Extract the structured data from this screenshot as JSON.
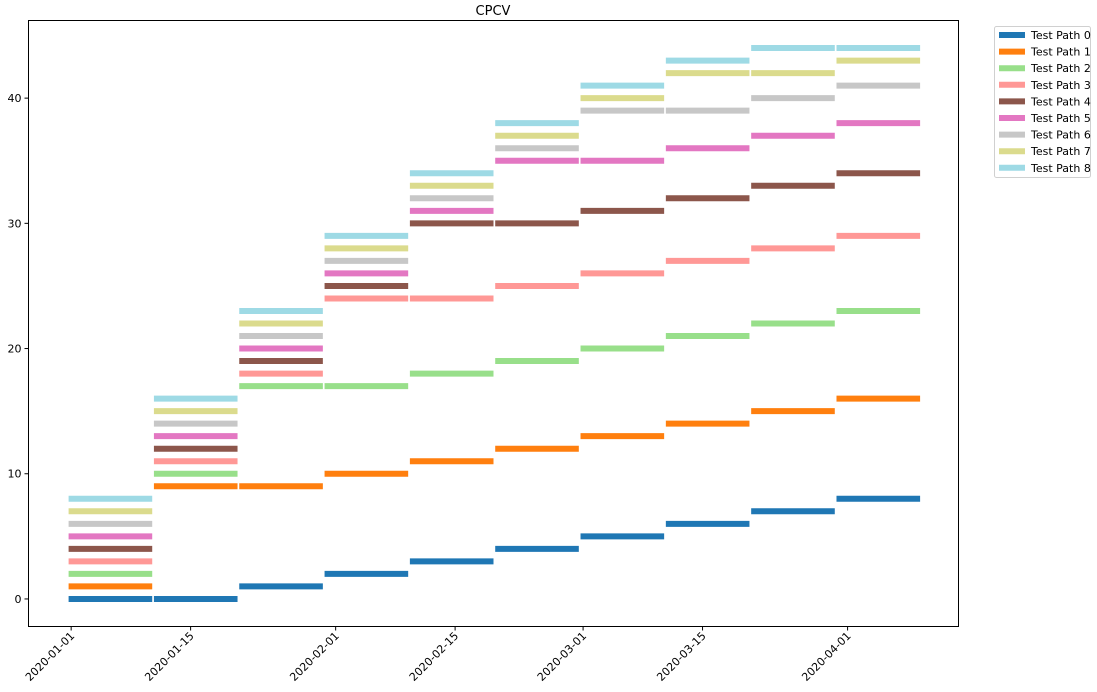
{
  "chart_data": {
    "type": "line",
    "title": "CPCV",
    "xlabel": "",
    "ylabel": "",
    "x_axis_type": "date",
    "xlim": [
      "2019-12-27",
      "2020-04-14"
    ],
    "ylim": [
      -2.2,
      46.2
    ],
    "x_ticks": [
      "2020-01-01",
      "2020-01-15",
      "2020-02-01",
      "2020-02-15",
      "2020-03-01",
      "2020-03-15",
      "2020-04-01"
    ],
    "y_ticks": [
      0,
      10,
      20,
      30,
      40
    ],
    "grid": false,
    "legend_placement": "outside-top-right",
    "groups": [
      {
        "start": "2020-01-01",
        "end": "2020-01-10"
      },
      {
        "start": "2020-01-11",
        "end": "2020-01-20"
      },
      {
        "start": "2020-01-21",
        "end": "2020-01-30"
      },
      {
        "start": "2020-01-31",
        "end": "2020-02-09"
      },
      {
        "start": "2020-02-10",
        "end": "2020-02-19"
      },
      {
        "start": "2020-02-20",
        "end": "2020-02-29"
      },
      {
        "start": "2020-03-01",
        "end": "2020-03-10"
      },
      {
        "start": "2020-03-11",
        "end": "2020-03-20"
      },
      {
        "start": "2020-03-21",
        "end": "2020-03-30"
      },
      {
        "start": "2020-03-31",
        "end": "2020-04-09"
      }
    ],
    "series": [
      {
        "name": "Test Path 0",
        "color": "#1f77b4",
        "values": [
          0,
          0,
          1,
          2,
          3,
          4,
          5,
          6,
          7,
          8
        ]
      },
      {
        "name": "Test Path 1",
        "color": "#ff7f0e",
        "values": [
          1,
          9,
          9,
          10,
          11,
          12,
          13,
          14,
          15,
          16
        ]
      },
      {
        "name": "Test Path 2",
        "color": "#98df8a",
        "values": [
          2,
          10,
          17,
          17,
          18,
          19,
          20,
          21,
          22,
          23
        ]
      },
      {
        "name": "Test Path 3",
        "color": "#ff9896",
        "values": [
          3,
          11,
          18,
          24,
          24,
          25,
          26,
          27,
          28,
          29
        ]
      },
      {
        "name": "Test Path 4",
        "color": "#8c564b",
        "values": [
          4,
          12,
          19,
          25,
          30,
          30,
          31,
          32,
          33,
          34
        ]
      },
      {
        "name": "Test Path 5",
        "color": "#e377c2",
        "values": [
          5,
          13,
          20,
          26,
          31,
          35,
          35,
          36,
          37,
          38
        ]
      },
      {
        "name": "Test Path 6",
        "color": "#c7c7c7",
        "values": [
          6,
          14,
          21,
          27,
          32,
          36,
          39,
          39,
          40,
          41
        ]
      },
      {
        "name": "Test Path 7",
        "color": "#dbdb8d",
        "values": [
          7,
          15,
          22,
          28,
          33,
          37,
          40,
          42,
          42,
          43
        ]
      },
      {
        "name": "Test Path 8",
        "color": "#9edae5",
        "values": [
          8,
          16,
          23,
          29,
          34,
          38,
          41,
          43,
          44,
          44
        ]
      }
    ]
  }
}
